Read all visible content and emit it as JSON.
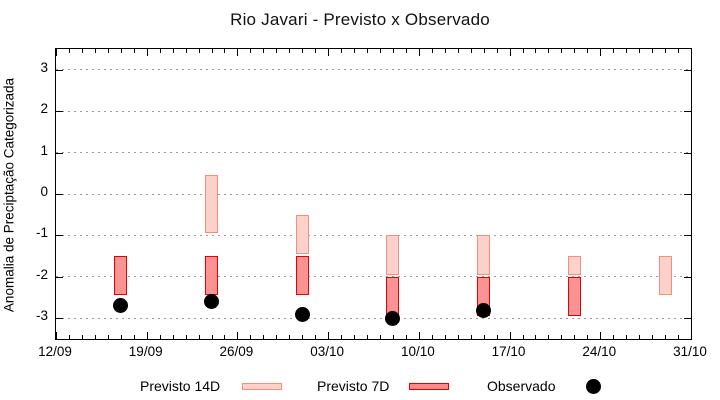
{
  "title": "Rio Javari - Previsto x Observado",
  "axes": {
    "ylabel": "Anomalia de Preciptação Categorizada",
    "yticks": [
      3,
      2,
      1,
      0,
      -1,
      -2,
      -3
    ],
    "ylim": [
      -3.5,
      3.5
    ],
    "xtick_labels": [
      "12/09",
      "19/09",
      "26/09",
      "03/10",
      "10/10",
      "17/10",
      "24/10",
      "31/10"
    ],
    "xtick_days": [
      0,
      7,
      14,
      21,
      28,
      35,
      42,
      49
    ],
    "x_total_days": 49,
    "x_minor_tick_every_days": 1
  },
  "legend": {
    "forecast14_label": "Previsto 14D",
    "forecast7_label": "Previsto 7D",
    "observed_label": "Observado"
  },
  "colors": {
    "forecast14_fill": "#fbd1ca",
    "forecast14_border": "#ef9180",
    "forecast7_fill": "#fa9393",
    "forecast7_border": "#e60000",
    "observed": "#000000",
    "grid": "#9a9a9a",
    "frame": "#000000"
  },
  "chart_data": {
    "type": "bar",
    "title": "Rio Javari - Previsto x Observado",
    "xlabel": "",
    "ylabel": "Anomalia de Preciptação Categorizada",
    "ylim": [
      -3.5,
      3.5
    ],
    "grid": "horizontal-dotted",
    "legend_position": "bottom",
    "x_range": [
      "12/09",
      "31/10"
    ],
    "series": [
      {
        "name": "Previsto 14D",
        "type": "range-bar",
        "points": [
          {
            "date": "24/09",
            "day": 12,
            "high": 0.45,
            "low": -0.95
          },
          {
            "date": "01/10",
            "day": 19,
            "high": -0.5,
            "low": -1.45
          },
          {
            "date": "08/10",
            "day": 26,
            "high": -1.0,
            "low": -1.95
          },
          {
            "date": "15/10",
            "day": 33,
            "high": -1.0,
            "low": -1.95
          },
          {
            "date": "22/10",
            "day": 40,
            "high": -1.5,
            "low": -1.95
          },
          {
            "date": "29/10",
            "day": 47,
            "high": -1.5,
            "low": -2.45
          }
        ]
      },
      {
        "name": "Previsto 7D",
        "type": "range-bar",
        "points": [
          {
            "date": "17/09",
            "day": 5,
            "high": -1.5,
            "low": -2.45
          },
          {
            "date": "24/09",
            "day": 12,
            "high": -1.5,
            "low": -2.45
          },
          {
            "date": "01/10",
            "day": 19,
            "high": -1.5,
            "low": -2.45
          },
          {
            "date": "08/10",
            "day": 26,
            "high": -2.0,
            "low": -2.95
          },
          {
            "date": "15/10",
            "day": 33,
            "high": -2.0,
            "low": -2.95
          },
          {
            "date": "22/10",
            "day": 40,
            "high": -2.0,
            "low": -2.95
          }
        ]
      },
      {
        "name": "Observado",
        "type": "scatter",
        "points": [
          {
            "date": "17/09",
            "day": 5,
            "value": -2.7
          },
          {
            "date": "24/09",
            "day": 12,
            "value": -2.6
          },
          {
            "date": "01/10",
            "day": 19,
            "value": -2.9
          },
          {
            "date": "08/10",
            "day": 26,
            "value": -3.0
          },
          {
            "date": "15/10",
            "day": 33,
            "value": -2.8
          }
        ]
      }
    ]
  }
}
